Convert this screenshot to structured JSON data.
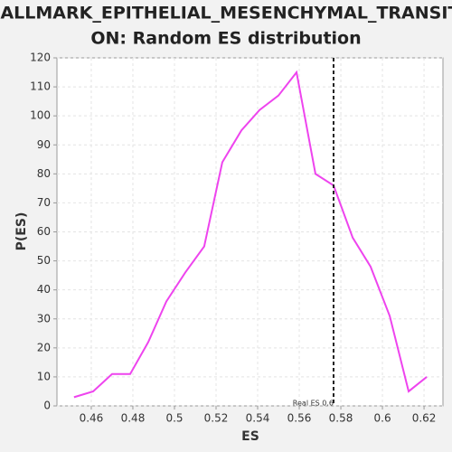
{
  "chart_data": {
    "type": "line",
    "title_lines": [
      "HALLMARK_EPITHELIAL_MESENCHYMAL_TRANSITI",
      "ON: Random ES distribution"
    ],
    "x_label": "ES",
    "y_label": "P(ES)",
    "x": [
      0.4517,
      0.4609,
      0.47,
      0.4787,
      0.4874,
      0.4961,
      0.5052,
      0.5143,
      0.523,
      0.5322,
      0.5409,
      0.55,
      0.5587,
      0.5678,
      0.5765,
      0.5857,
      0.5943,
      0.6035,
      0.6126,
      0.6213
    ],
    "series": [
      {
        "color": "#ee44ee",
        "values": [
          3,
          5,
          11,
          11,
          22,
          36,
          46,
          55,
          84,
          95,
          102,
          107,
          115,
          80,
          76,
          58,
          48,
          31,
          5,
          10
        ]
      }
    ],
    "xlim": [
      0.4435,
      0.6291
    ],
    "ylim": [
      0,
      120
    ],
    "xticks": [
      0.46,
      0.48,
      0.5,
      0.52,
      0.54,
      0.56,
      0.58,
      0.6,
      0.62
    ],
    "yticks": [
      0,
      10,
      20,
      30,
      40,
      50,
      60,
      70,
      80,
      90,
      100,
      110,
      120
    ],
    "grid": true,
    "marker_line": {
      "value": 0.5765,
      "label": "Real ES 0.6"
    }
  }
}
